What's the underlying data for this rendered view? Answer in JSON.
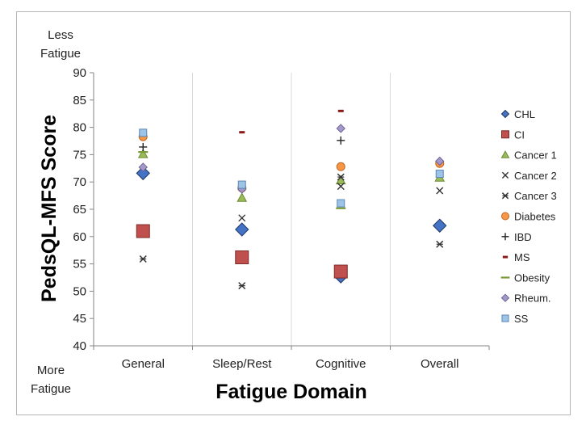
{
  "chart_data": {
    "type": "scatter",
    "title": "",
    "xlabel": "Fatigue Domain",
    "ylabel": "PedsQL-MFS Score",
    "ylim": [
      40,
      90
    ],
    "yticks": [
      40,
      45,
      50,
      55,
      60,
      65,
      70,
      75,
      80,
      85,
      90
    ],
    "categories": [
      "General",
      "Sleep/Rest",
      "Cognitive",
      "Overall"
    ],
    "top_annotation": [
      "Less",
      "Fatigue"
    ],
    "bottom_annotation": [
      "More",
      "Fatigue"
    ],
    "grid": "vertical",
    "legend_position": "right",
    "series": [
      {
        "name": "CHL",
        "marker": "diamond",
        "color": "#4472c4",
        "edge": "#1f3864",
        "size": 16,
        "values": [
          71.6,
          61.3,
          52.7,
          62.0
        ]
      },
      {
        "name": "CI",
        "marker": "square",
        "color": "#c0504d",
        "edge": "#7f2a28",
        "size": 16,
        "values": [
          61.0,
          56.2,
          53.6,
          null
        ]
      },
      {
        "name": "Cancer 1",
        "marker": "triangle",
        "color": "#9bbb59",
        "edge": "#6a8a35",
        "size": 11,
        "values": [
          75.1,
          67.1,
          70.3,
          70.8
        ]
      },
      {
        "name": "Cancer 2",
        "marker": "x",
        "color": "#333333",
        "values": [
          null,
          63.4,
          69.2,
          68.4
        ]
      },
      {
        "name": "Cancer 3",
        "marker": "asterisk",
        "color": "#333333",
        "values": [
          55.9,
          51.0,
          70.9,
          58.6
        ]
      },
      {
        "name": "Diabetes",
        "marker": "circle",
        "color": "#f79646",
        "edge": "#c0651e",
        "size": 10,
        "values": [
          78.3,
          68.9,
          72.8,
          73.4
        ]
      },
      {
        "name": "IBD",
        "marker": "plus",
        "color": "#222222",
        "values": [
          76.4,
          null,
          77.6,
          null
        ]
      },
      {
        "name": "MS",
        "marker": "dash",
        "color": "#8b1a1a",
        "values": [
          null,
          79.1,
          83.0,
          null
        ]
      },
      {
        "name": "Obesity",
        "marker": "hline",
        "color": "#7a9a3a",
        "values": [
          75.5,
          null,
          65.2,
          null
        ]
      },
      {
        "name": "Rheum.",
        "marker": "diamond",
        "color": "#a398c9",
        "edge": "#6e6396",
        "size": 10,
        "values": [
          72.7,
          68.7,
          79.8,
          73.8
        ]
      },
      {
        "name": "SS",
        "marker": "square",
        "color": "#9dc3e6",
        "edge": "#5b88b8",
        "size": 9,
        "values": [
          79.0,
          69.5,
          66.1,
          71.5
        ]
      }
    ]
  }
}
